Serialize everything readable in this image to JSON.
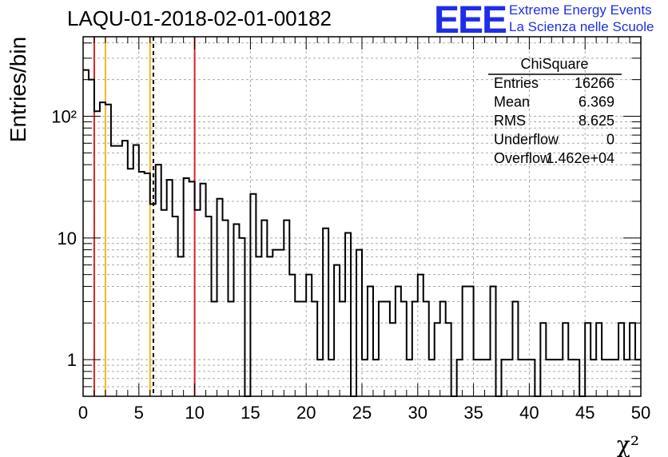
{
  "title": "LAQU-01-2018-02-01-00182",
  "logo": {
    "mark": "EEE",
    "line1": "Extreme Energy Events",
    "line2": "La Scienza nelle Scuole",
    "color": "#1f2ee6"
  },
  "stats_box": {
    "name": "ChiSquare",
    "rows": [
      {
        "label": "Entries",
        "value": "16266"
      },
      {
        "label": "Mean",
        "value": "6.369"
      },
      {
        "label": "RMS",
        "value": "8.625"
      },
      {
        "label": "Underflow",
        "value": "0"
      },
      {
        "label": "Overflow",
        "value": "1.462e+04"
      }
    ]
  },
  "chart_data": {
    "type": "histogram",
    "xlabel": "χ²",
    "ylabel": "Entries/bin",
    "xlim": [
      0,
      50
    ],
    "ylim": [
      0.5,
      450
    ],
    "yscale": "log",
    "grid": true,
    "x_ticks": [
      0,
      5,
      10,
      15,
      20,
      25,
      30,
      35,
      40,
      45,
      50
    ],
    "y_tick_labels": [
      {
        "value": 1,
        "label": "1"
      },
      {
        "value": 10,
        "label": "10"
      },
      {
        "value": 100,
        "label": "10²"
      }
    ],
    "bin_width": 0.5,
    "bin_values": [
      240,
      200,
      110,
      130,
      125,
      57,
      57,
      63,
      37,
      58,
      35,
      34,
      19,
      40,
      17,
      30,
      15,
      7,
      31,
      29,
      17,
      28,
      15,
      3,
      21,
      14,
      3,
      13,
      10,
      0,
      23,
      7,
      14,
      7,
      8,
      8,
      14,
      5,
      3,
      3,
      5,
      3,
      1,
      12,
      1,
      6,
      3,
      11,
      0,
      8,
      1,
      4,
      1,
      3,
      3,
      2,
      4,
      3,
      1,
      3,
      5,
      3,
      1,
      2,
      3,
      2,
      0,
      1,
      4,
      4,
      1,
      1,
      1,
      4,
      0,
      1,
      1,
      3,
      1,
      1,
      1,
      0,
      2,
      1,
      1,
      1,
      2,
      1,
      1,
      0,
      2,
      1,
      2,
      1,
      1,
      1,
      2,
      1,
      2,
      1
    ],
    "vertical_lines": [
      {
        "x": 1,
        "color": "#d62424",
        "style": "solid"
      },
      {
        "x": 2,
        "color": "#f0b820",
        "style": "solid"
      },
      {
        "x": 6,
        "color": "#f0b820",
        "style": "solid"
      },
      {
        "x": 6.3,
        "color": "#000000",
        "style": "dashed"
      },
      {
        "x": 10,
        "color": "#d62424",
        "style": "solid"
      }
    ]
  }
}
